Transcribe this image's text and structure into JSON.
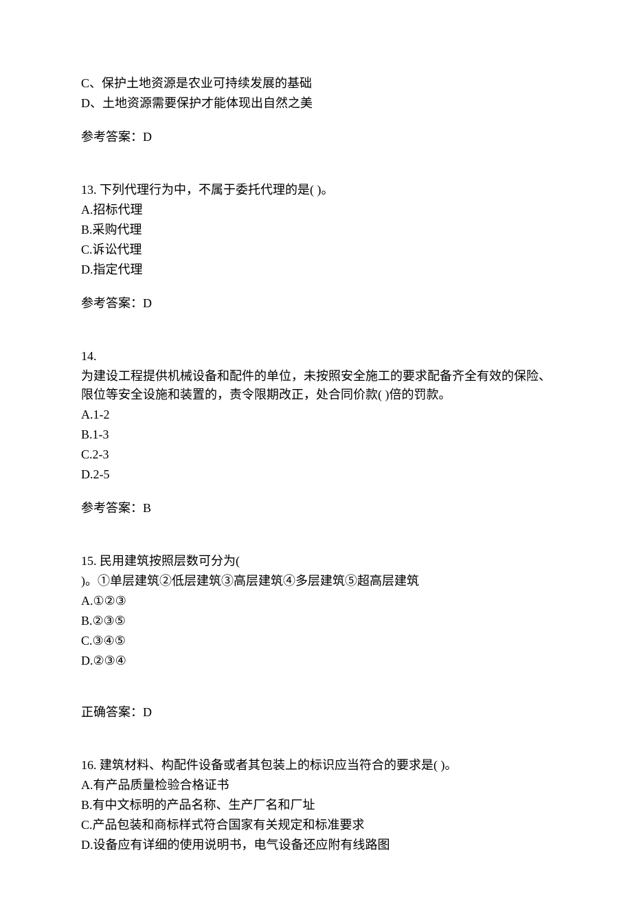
{
  "q12_partial": {
    "option_c": "C、保护土地资源是农业可持续发展的基础",
    "option_d": "D、土地资源需要保护才能体现出自然之美",
    "answer_label": "参考答案：D"
  },
  "q13": {
    "stem": "13. 下列代理行为中，不属于委托代理的是(  )。",
    "option_a": "A.招标代理",
    "option_b": "B.采购代理",
    "option_c": "C.诉讼代理",
    "option_d": "D.指定代理",
    "answer_label": "参考答案：D"
  },
  "q14": {
    "number": "14.",
    "stem": "为建设工程提供机械设备和配件的单位，未按照安全施工的要求配备齐全有效的保险、限位等安全设施和装置的，责令限期改正，处合同价款(  )倍的罚款。",
    "option_a": "A.1-2",
    "option_b": "B.1-3",
    "option_c": "C.2-3",
    "option_d": "D.2-5",
    "answer_label": "参考答案：B"
  },
  "q15": {
    "stem_line1": "15. 民用建筑按照层数可分为(",
    "stem_line2": ")。①单层建筑②低层建筑③高层建筑④多层建筑⑤超高层建筑",
    "option_a": "A.①②③",
    "option_b": "B.②③⑤",
    "option_c": "C.③④⑤",
    "option_d": "D.②③④",
    "answer_label": "正确答案：D"
  },
  "q16": {
    "stem": "16. 建筑材料、构配件设备或者其包装上的标识应当符合的要求是(  )。",
    "option_a": "A.有产品质量检验合格证书",
    "option_b": "B.有中文标明的产品名称、生产厂名和厂址",
    "option_c": "C.产品包装和商标样式符合国家有关规定和标准要求",
    "option_d": "D.设备应有详细的使用说明书，电气设备还应附有线路图"
  }
}
